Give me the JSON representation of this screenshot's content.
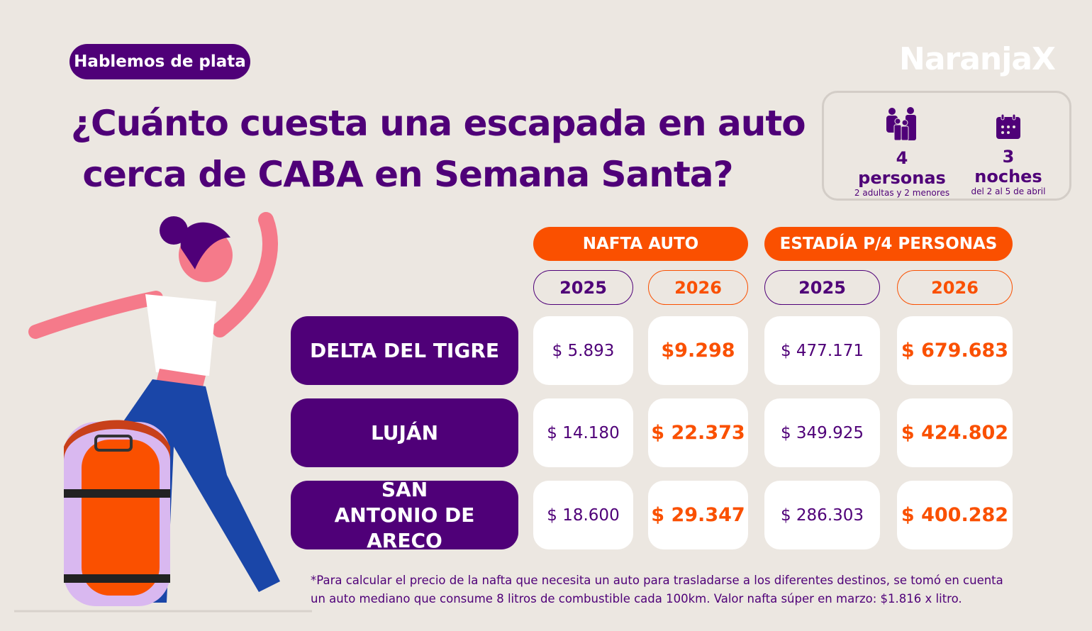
{
  "header": {
    "tag": "Hablemos de plata",
    "title_line1": "¿Cuánto cuesta una escapada en auto",
    "title_line2": " cerca de CABA en Semana Santa?",
    "logo": "NaranjaX"
  },
  "info": {
    "people": {
      "icon": "family-icon",
      "title": "4 personas",
      "subtitle": "2 adultas y 2 menores"
    },
    "nights": {
      "icon": "calendar-icon",
      "title": "3 noches",
      "subtitle": "del 2 al 5 de abril"
    }
  },
  "table": {
    "groups": [
      {
        "label": "NAFTA AUTO",
        "years": [
          "2025",
          "2026"
        ]
      },
      {
        "label": "ESTADÍA P/4 PERSONAS",
        "years": [
          "2025",
          "2026"
        ]
      }
    ],
    "rows": [
      {
        "destination": "DELTA DEL TIGRE",
        "values": [
          "$ 5.893",
          "$9.298",
          "$ 477.171",
          "$ 679.683"
        ]
      },
      {
        "destination": "LUJÁN",
        "values": [
          "$ 14.180",
          "$ 22.373",
          "$ 349.925",
          "$ 424.802"
        ]
      },
      {
        "destination": "SAN ANTONIO DE ARECO",
        "values": [
          "$ 18.600",
          "$ 29.347",
          "$ 286.303",
          "$ 400.282"
        ]
      }
    ]
  },
  "footnote": {
    "line1": "*Para calcular el precio de la nafta que necesita un auto para trasladarse a los diferentes destinos, se tomó en cuenta",
    "line2": "un auto mediano que consume 8 litros de combustible cada 100km. Valor nafta súper en marzo: $1.816 x litro."
  },
  "colors": {
    "purple": "#4f0078",
    "orange": "#fa5000",
    "background": "#ece7e1"
  }
}
